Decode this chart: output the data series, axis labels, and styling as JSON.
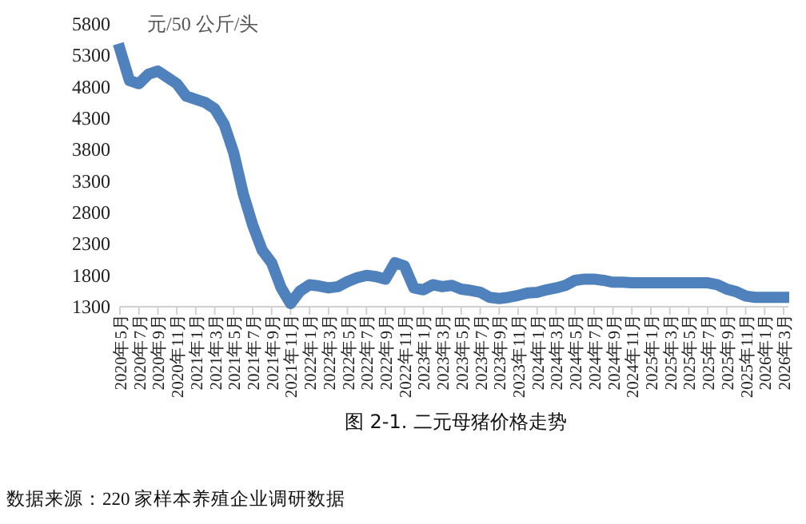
{
  "chart_data": {
    "type": "line",
    "title": "图 2-1. 二元母猪价格走势",
    "ylabel": "元/50 公斤/头",
    "annotations": [
      "数据来源：220 家样本养殖企业调研数据"
    ],
    "categories": [
      "2020年5月",
      null,
      "2020年7月",
      null,
      "2020年9月",
      null,
      "2020年11月",
      null,
      "2021年1月",
      null,
      "2021年3月",
      null,
      "2021年5月",
      null,
      "2021年7月",
      null,
      "2021年9月",
      null,
      "2021年11月",
      null,
      "2022年1月",
      null,
      "2022年3月",
      null,
      "2022年5月",
      null,
      "2022年7月",
      null,
      "2022年9月",
      null,
      "2022年11月",
      null,
      "2023年1月",
      null,
      "2023年3月",
      null,
      "2023年5月",
      null,
      "2023年7月",
      null,
      "2023年9月",
      null,
      "2023年11月",
      null,
      "2024年1月",
      null,
      "2024年3月",
      null,
      "2024年5月",
      null,
      "2024年7月",
      null,
      "2024年9月",
      null,
      "2024年11月",
      null,
      "2025年1月",
      null,
      "2025年3月",
      null,
      "2025年5月",
      null,
      "2025年7月",
      null,
      "2025年9月",
      null,
      "2025年11月",
      null,
      "2026年1月",
      null,
      "2026年3月"
    ],
    "series": [
      {
        "color": "#4f81bd",
        "values": [
          5400,
          4900,
          4850,
          5000,
          5050,
          4950,
          4850,
          4650,
          4600,
          4550,
          4450,
          4200,
          3750,
          3100,
          2600,
          2200,
          2000,
          1600,
          1350,
          1550,
          1650,
          1630,
          1600,
          1620,
          1700,
          1760,
          1800,
          1780,
          1740,
          2000,
          1950,
          1600,
          1570,
          1650,
          1620,
          1640,
          1580,
          1560,
          1530,
          1450,
          1430,
          1450,
          1480,
          1520,
          1530,
          1570,
          1600,
          1640,
          1720,
          1740,
          1740,
          1720,
          1690,
          1690,
          1680,
          1680,
          1680,
          1680,
          1680,
          1680,
          1680,
          1680,
          1680,
          1650,
          1580,
          1540,
          1470,
          1450,
          1450,
          1450,
          1450
        ]
      }
    ],
    "ylim": [
      1300,
      5800
    ],
    "yticks": [
      1300,
      1800,
      2300,
      2800,
      3300,
      3800,
      4300,
      4800,
      5300,
      5800
    ],
    "grid": false,
    "line_style": "solid"
  }
}
